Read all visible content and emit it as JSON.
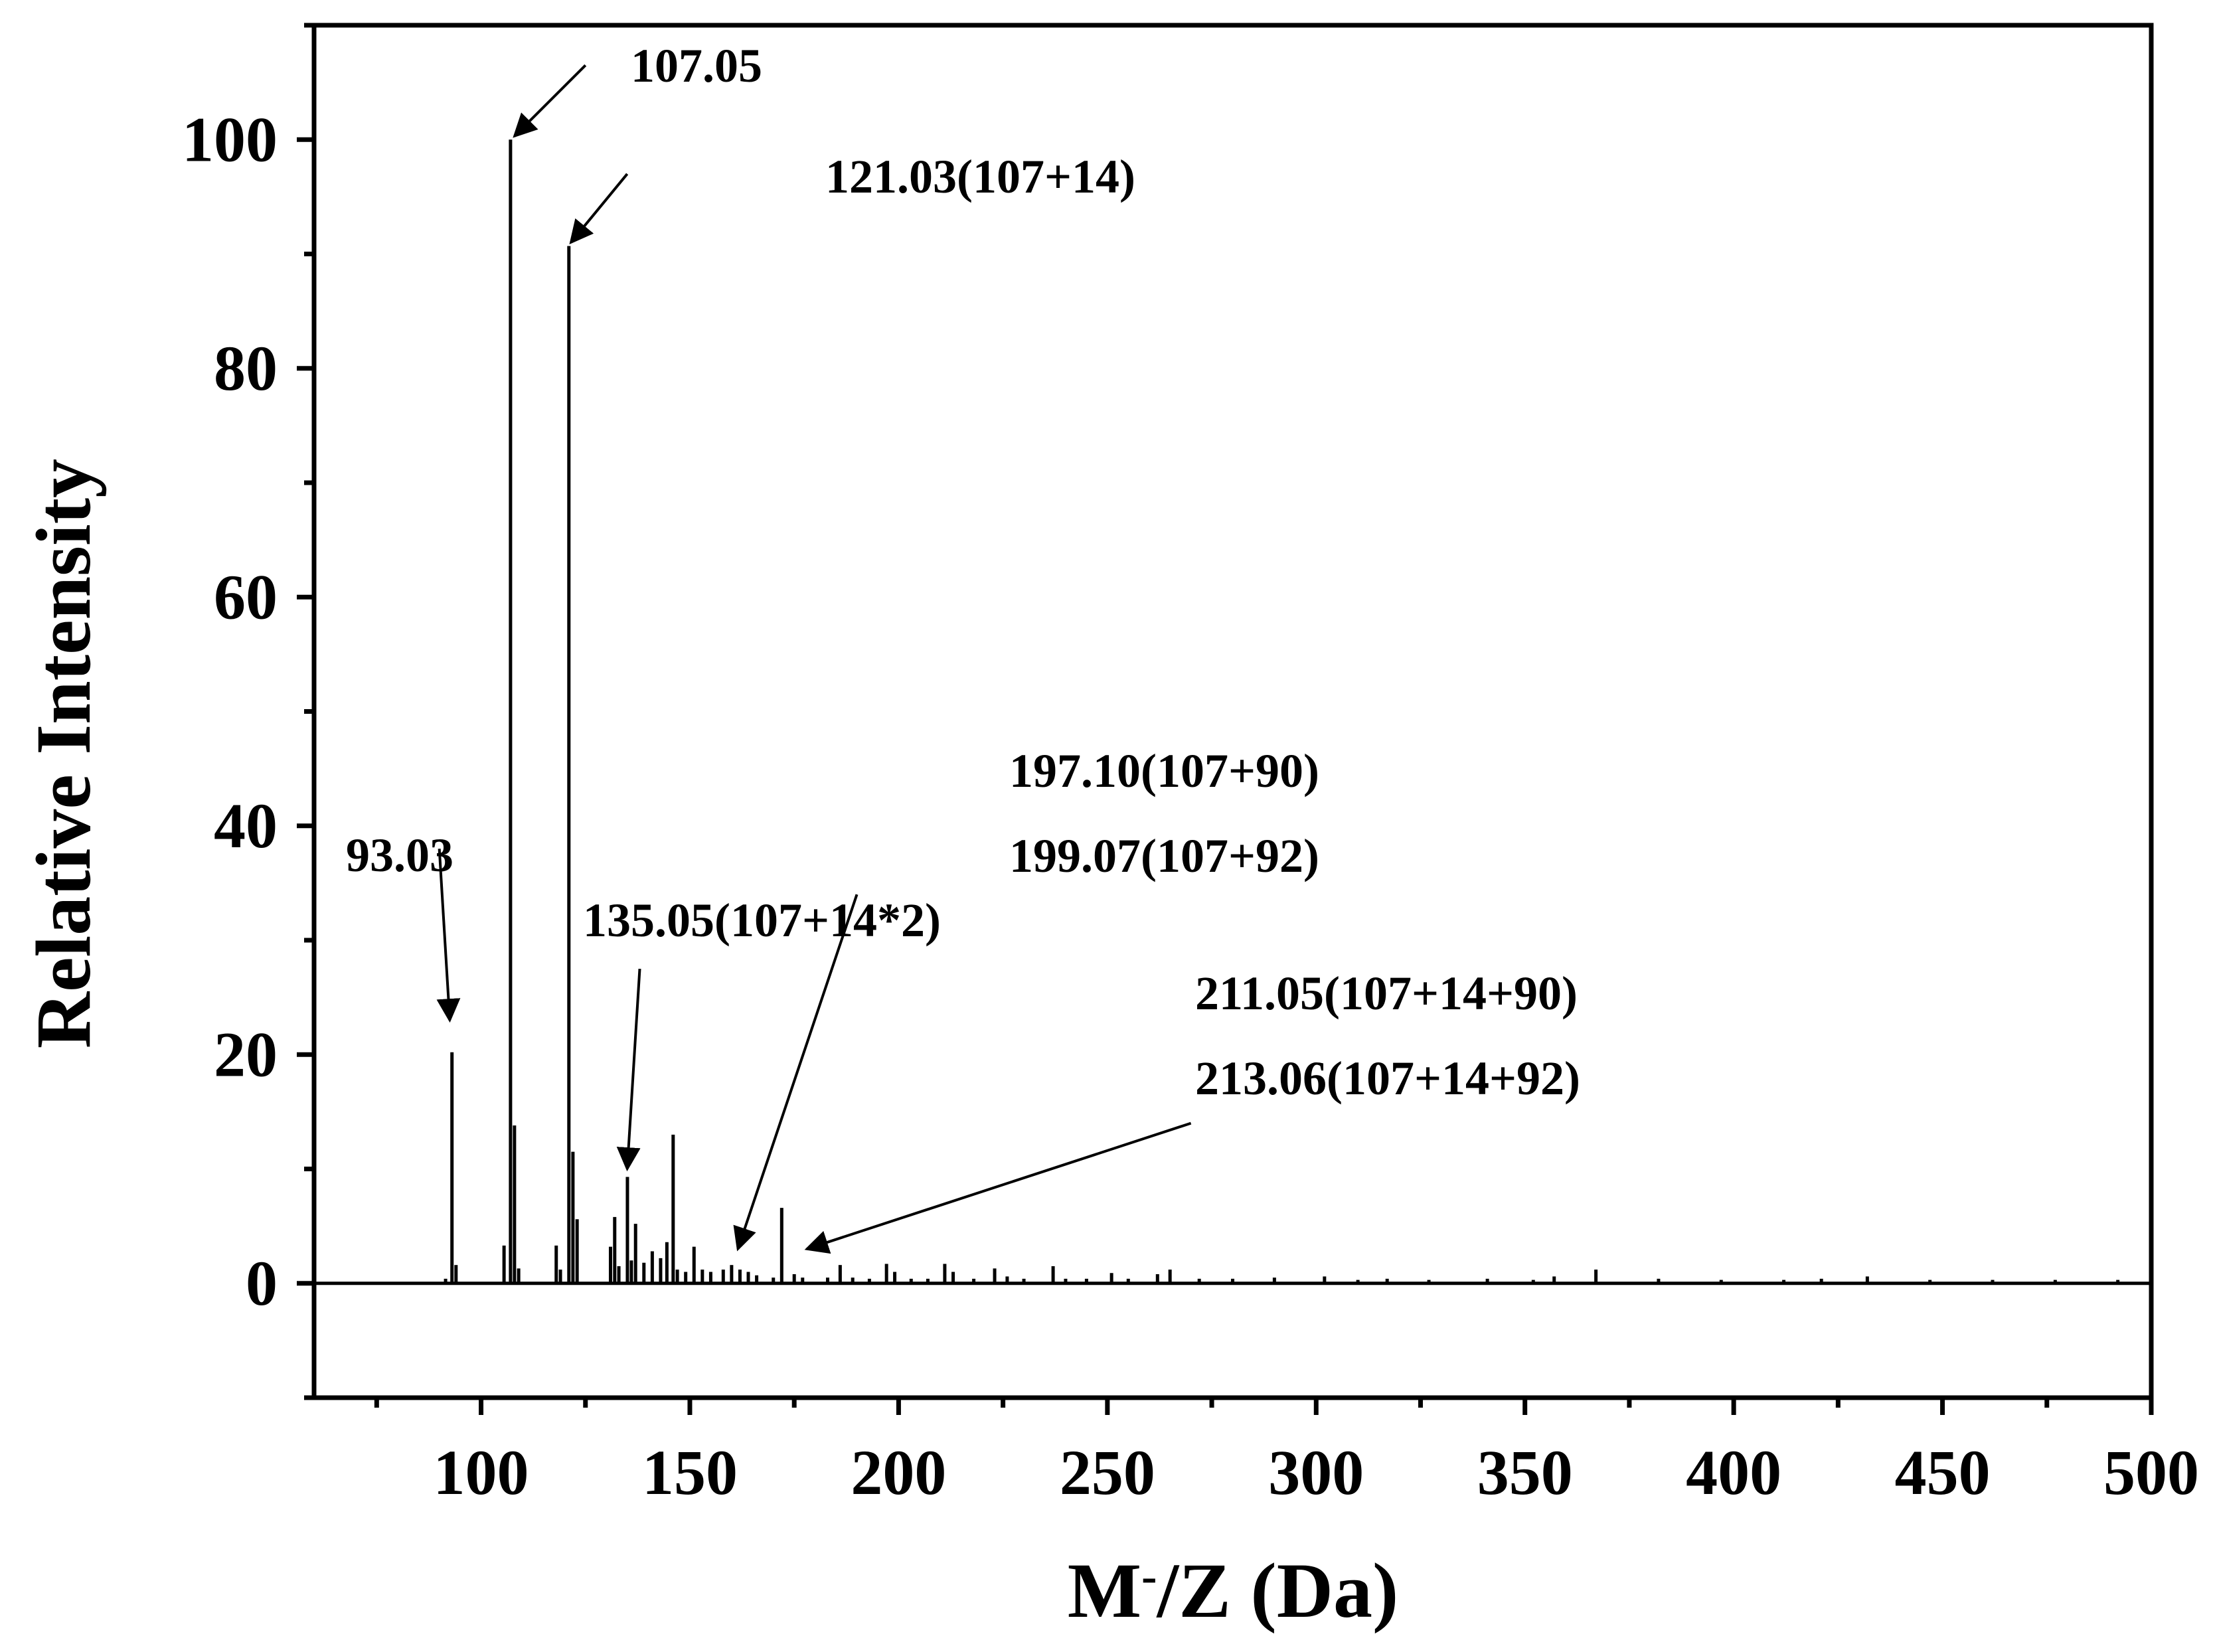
{
  "chart_data": {
    "type": "bar",
    "title": "",
    "xlabel_main": "M",
    "xlabel_sup": "-",
    "xlabel_rest": "/Z (Da)",
    "ylabel": "Relative Intensity",
    "xlim": [
      60,
      500
    ],
    "ylim": [
      -10,
      110
    ],
    "x_ticks": [
      100,
      150,
      200,
      250,
      300,
      350,
      400,
      450,
      500
    ],
    "x_tick_labels": [
      "100",
      "150",
      "200",
      "250",
      "300",
      "350",
      "400",
      "450",
      "500"
    ],
    "x_minor_ticks": [
      75,
      125,
      175,
      225,
      275,
      325,
      375,
      425,
      475
    ],
    "y_ticks": [
      0,
      20,
      40,
      60,
      80,
      100
    ],
    "y_tick_labels": [
      "0",
      "20",
      "40",
      "60",
      "80",
      "100"
    ],
    "y_minor_ticks": [
      -10,
      10,
      30,
      50,
      70,
      90,
      110
    ],
    "baseline": 0,
    "peaks": [
      {
        "x": 91.5,
        "y": 0.4
      },
      {
        "x": 93.03,
        "y": 20.2
      },
      {
        "x": 94.0,
        "y": 1.6
      },
      {
        "x": 105.5,
        "y": 3.3
      },
      {
        "x": 107.05,
        "y": 100.0
      },
      {
        "x": 108.0,
        "y": 13.8
      },
      {
        "x": 109.0,
        "y": 1.3
      },
      {
        "x": 118.0,
        "y": 3.3
      },
      {
        "x": 119.0,
        "y": 1.2
      },
      {
        "x": 121.03,
        "y": 90.7
      },
      {
        "x": 122.0,
        "y": 11.5
      },
      {
        "x": 123.0,
        "y": 5.6
      },
      {
        "x": 131.0,
        "y": 3.2
      },
      {
        "x": 132.0,
        "y": 5.8
      },
      {
        "x": 133.0,
        "y": 1.5
      },
      {
        "x": 135.05,
        "y": 9.3
      },
      {
        "x": 136.0,
        "y": 2.0
      },
      {
        "x": 137.0,
        "y": 5.2
      },
      {
        "x": 139.0,
        "y": 1.8
      },
      {
        "x": 141.0,
        "y": 2.8
      },
      {
        "x": 143.0,
        "y": 2.2
      },
      {
        "x": 144.5,
        "y": 3.6
      },
      {
        "x": 146.0,
        "y": 13.0
      },
      {
        "x": 147.0,
        "y": 1.2
      },
      {
        "x": 149.0,
        "y": 1.0
      },
      {
        "x": 151.0,
        "y": 3.2
      },
      {
        "x": 153.0,
        "y": 1.2
      },
      {
        "x": 155.0,
        "y": 1.0
      },
      {
        "x": 158.0,
        "y": 1.2
      },
      {
        "x": 160.0,
        "y": 1.6
      },
      {
        "x": 162.0,
        "y": 1.2
      },
      {
        "x": 164.0,
        "y": 1.0
      },
      {
        "x": 166.0,
        "y": 0.7
      },
      {
        "x": 170.0,
        "y": 0.5
      },
      {
        "x": 172.0,
        "y": 6.6
      },
      {
        "x": 175.0,
        "y": 0.8
      },
      {
        "x": 177.0,
        "y": 0.5
      },
      {
        "x": 183.0,
        "y": 0.5
      },
      {
        "x": 186.0,
        "y": 1.6
      },
      {
        "x": 189.0,
        "y": 0.5
      },
      {
        "x": 193.0,
        "y": 0.4
      },
      {
        "x": 197.1,
        "y": 1.7
      },
      {
        "x": 199.07,
        "y": 1.0
      },
      {
        "x": 203.0,
        "y": 0.4
      },
      {
        "x": 207.0,
        "y": 0.4
      },
      {
        "x": 211.05,
        "y": 1.7
      },
      {
        "x": 213.06,
        "y": 1.0
      },
      {
        "x": 218.0,
        "y": 0.4
      },
      {
        "x": 223.0,
        "y": 1.3
      },
      {
        "x": 226.0,
        "y": 0.6
      },
      {
        "x": 230.0,
        "y": 0.4
      },
      {
        "x": 237.0,
        "y": 1.5
      },
      {
        "x": 240.0,
        "y": 0.4
      },
      {
        "x": 245.0,
        "y": 0.4
      },
      {
        "x": 251.0,
        "y": 0.9
      },
      {
        "x": 255.0,
        "y": 0.4
      },
      {
        "x": 262.0,
        "y": 0.8
      },
      {
        "x": 265.0,
        "y": 1.2
      },
      {
        "x": 272.0,
        "y": 0.4
      },
      {
        "x": 280.0,
        "y": 0.4
      },
      {
        "x": 290.0,
        "y": 0.5
      },
      {
        "x": 302.0,
        "y": 0.6
      },
      {
        "x": 310.0,
        "y": 0.3
      },
      {
        "x": 317.0,
        "y": 0.4
      },
      {
        "x": 327.0,
        "y": 0.3
      },
      {
        "x": 341.0,
        "y": 0.4
      },
      {
        "x": 352.0,
        "y": 0.3
      },
      {
        "x": 357.0,
        "y": 0.6
      },
      {
        "x": 367.0,
        "y": 1.2
      },
      {
        "x": 382.0,
        "y": 0.4
      },
      {
        "x": 397.0,
        "y": 0.3
      },
      {
        "x": 412.0,
        "y": 0.3
      },
      {
        "x": 421.0,
        "y": 0.4
      },
      {
        "x": 432.0,
        "y": 0.6
      },
      {
        "x": 447.0,
        "y": 0.3
      },
      {
        "x": 462.0,
        "y": 0.3
      },
      {
        "x": 477.0,
        "y": 0.3
      },
      {
        "x": 492.0,
        "y": 0.3
      }
    ],
    "annotations": [
      {
        "text": "93.03",
        "arrow_from": [
          90.0,
          38.0
        ],
        "arrow_to": [
          92.5,
          23.0
        ]
      },
      {
        "text": "107.05",
        "arrow_from": [
          125.0,
          106.5
        ],
        "arrow_to": [
          108.0,
          100.3
        ]
      },
      {
        "text": "121.03(107+14)",
        "arrow_from": [
          135.0,
          97.0
        ],
        "arrow_to": [
          121.5,
          91.0
        ]
      },
      {
        "text": "135.05(107+14*2)",
        "arrow_from": [
          138.0,
          27.5
        ],
        "arrow_to": [
          135.0,
          10.0
        ]
      },
      {
        "text": "197.10(107+90)",
        "arrow_from": null,
        "arrow_to": null
      },
      {
        "text": "199.07(107+92)",
        "arrow_from": [
          190.0,
          34.0
        ],
        "arrow_to": [
          161.5,
          3.0
        ]
      },
      {
        "text": "211.05(107+14+90)",
        "arrow_from": null,
        "arrow_to": null
      },
      {
        "text": "213.06(107+14+92)",
        "arrow_from": [
          270.0,
          14.0
        ],
        "arrow_to": [
          178.0,
          3.0
        ]
      }
    ]
  }
}
